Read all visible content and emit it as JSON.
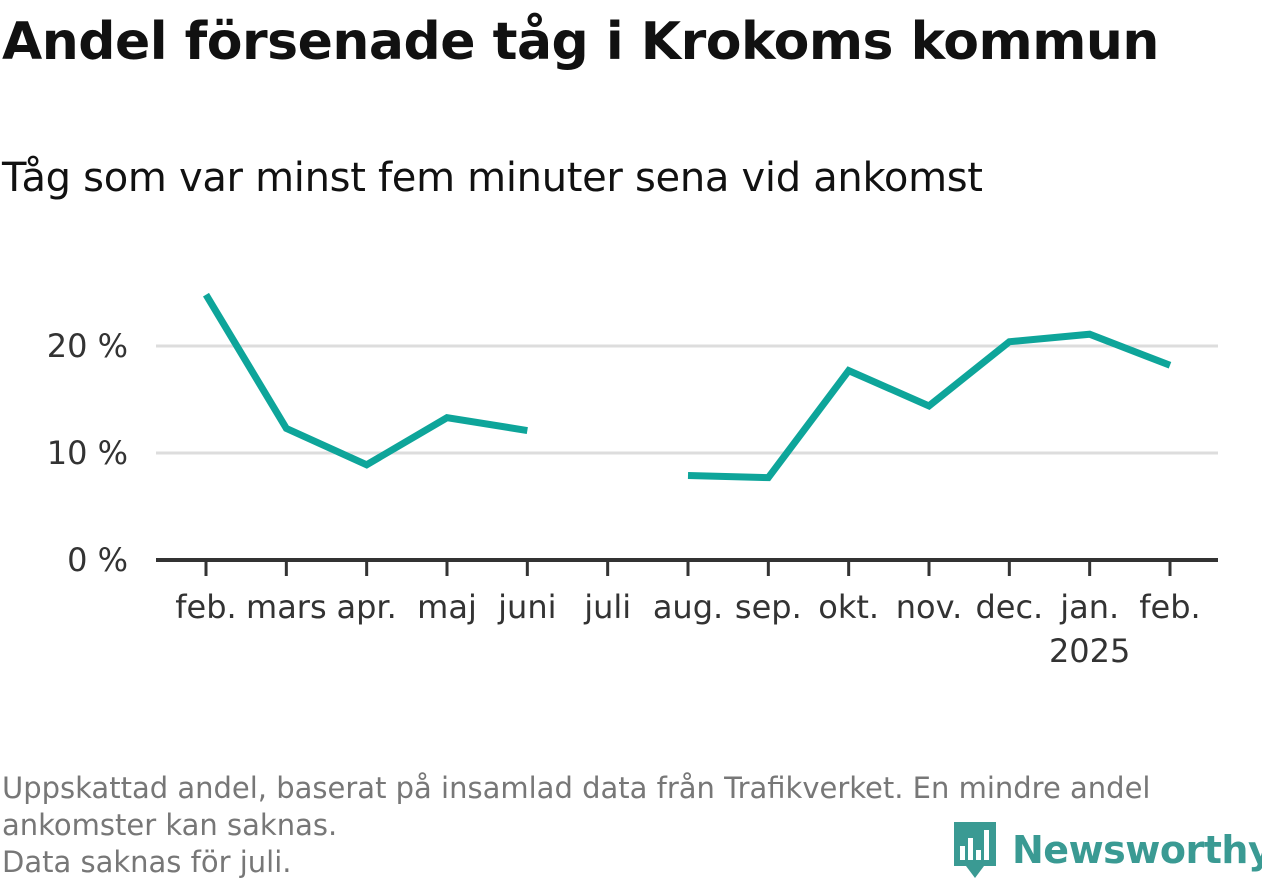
{
  "title": "Andel försenade tåg i Krokoms kommun",
  "subtitle": "Tåg som var minst fem minuter sena vid ankomst",
  "footnote": {
    "line1": "Uppskattad andel, baserat på insamlad data från Trafikverket. En mindre andel",
    "line2": "ankomster kan saknas.",
    "line3": "Data saknas för juli."
  },
  "brand": {
    "name": "Newsworthy",
    "icon": "newsworthy-chart-logo-icon",
    "color": "#3a9a93"
  },
  "chart_data": {
    "type": "line",
    "categories": [
      "feb.",
      "mars",
      "apr.",
      "maj",
      "juni",
      "juli",
      "aug.",
      "sep.",
      "okt.",
      "nov.",
      "dec.",
      "jan.",
      "feb."
    ],
    "year_label": {
      "text": "2025",
      "under_category_index": 11
    },
    "series": [
      {
        "values": [
          24.8,
          12.3,
          8.9,
          13.3,
          12.1,
          null,
          7.9,
          7.7,
          17.7,
          14.4,
          20.4,
          21.1,
          18.2
        ],
        "color": "#0ea59a"
      }
    ],
    "yticks": [
      {
        "value": 0,
        "label": "0 %"
      },
      {
        "value": 10,
        "label": "10 %"
      },
      {
        "value": 20,
        "label": "20 %"
      }
    ],
    "ylim": [
      0,
      25
    ],
    "grid": true,
    "grid_color": "#dddddd",
    "axis_color": "#333333"
  }
}
